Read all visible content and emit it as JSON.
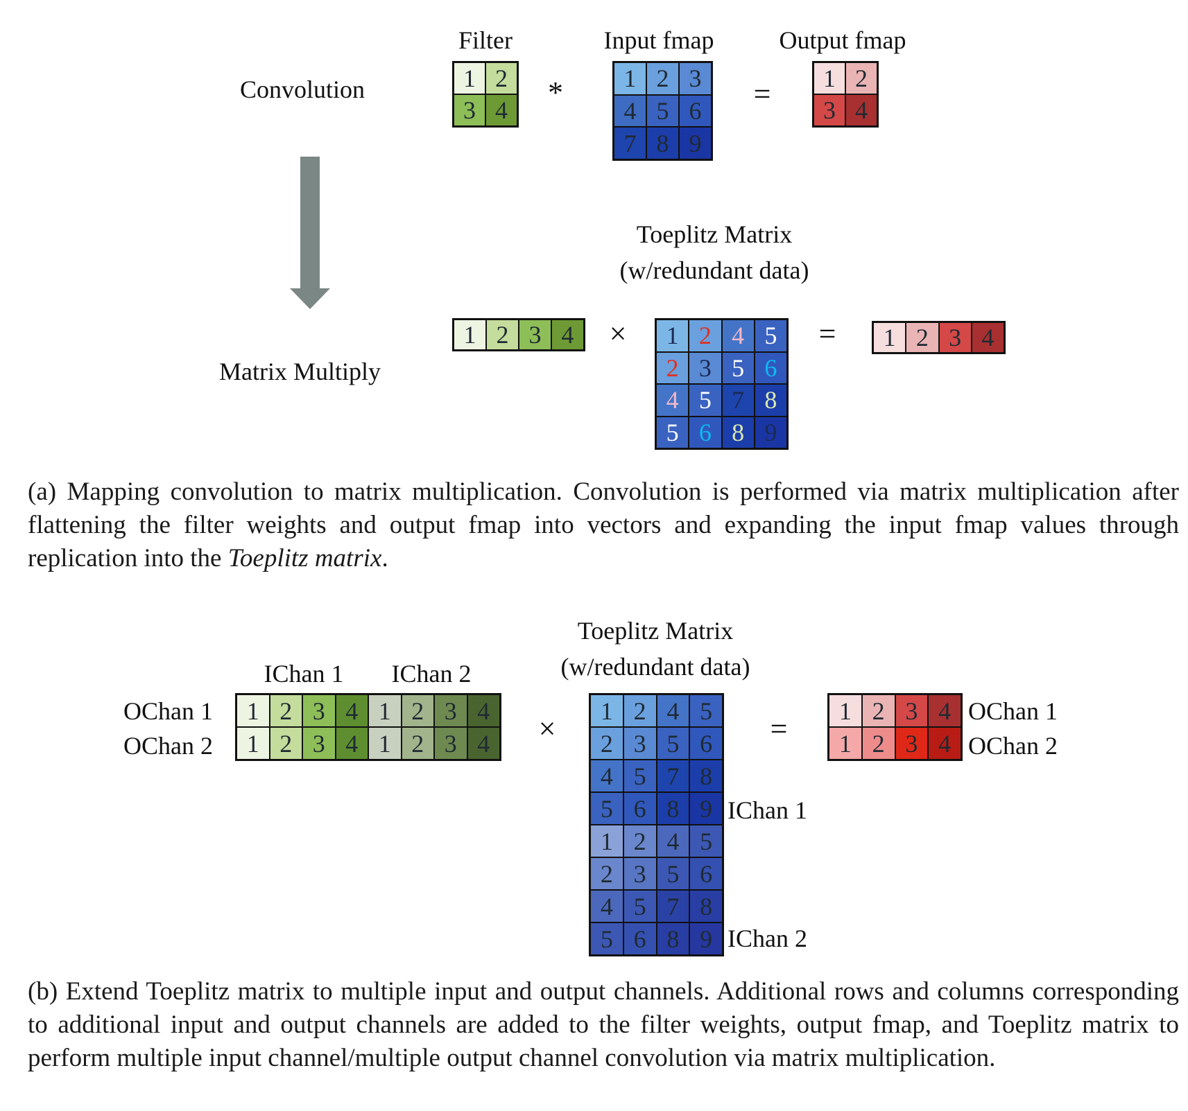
{
  "part_a": {
    "convolution_label": "Convolution",
    "matrix_multiply_label": "Matrix Multiply",
    "filter_label": "Filter",
    "input_label": "Input fmap",
    "output_label": "Output fmap",
    "conv_op": "*",
    "mul_op": "×",
    "eq_op": "=",
    "toeplitz_title": "Toeplitz Matrix",
    "toeplitz_subtitle": "(w/redundant data)",
    "filter_grid": {
      "cells": [
        {
          "v": "1",
          "bg": "#eef4e2"
        },
        {
          "v": "2",
          "bg": "#c4dc9c"
        },
        {
          "v": "3",
          "bg": "#8ebe58"
        },
        {
          "v": "4",
          "bg": "#6e9a36"
        }
      ]
    },
    "input_grid": {
      "cells": [
        {
          "v": "1",
          "bg": "#7cb6e6"
        },
        {
          "v": "2",
          "bg": "#6aa0de"
        },
        {
          "v": "3",
          "bg": "#5a8ad4"
        },
        {
          "v": "4",
          "bg": "#3e6cc2"
        },
        {
          "v": "5",
          "bg": "#3a62c0"
        },
        {
          "v": "6",
          "bg": "#3058bc"
        },
        {
          "v": "7",
          "bg": "#1e44ae"
        },
        {
          "v": "8",
          "bg": "#1c3eaa"
        },
        {
          "v": "9",
          "bg": "#1a36a4"
        }
      ]
    },
    "output_grid": {
      "cells": [
        {
          "v": "1",
          "bg": "#f6dede"
        },
        {
          "v": "2",
          "bg": "#eab4b4"
        },
        {
          "v": "3",
          "bg": "#d44848"
        },
        {
          "v": "4",
          "bg": "#a83030"
        }
      ]
    },
    "filter_vector": {
      "cells": [
        {
          "v": "1",
          "bg": "#eef4e2"
        },
        {
          "v": "2",
          "bg": "#c4dc9c"
        },
        {
          "v": "3",
          "bg": "#8ebe58"
        },
        {
          "v": "4",
          "bg": "#6e9a36"
        }
      ]
    },
    "toeplitz_grid": {
      "cells": [
        {
          "v": "1",
          "bg": "#7cb6e6",
          "fg": "#1a2a55"
        },
        {
          "v": "2",
          "bg": "#6aa0de",
          "fg": "#e03020"
        },
        {
          "v": "4",
          "bg": "#4474c8",
          "fg": "#f0b8c8"
        },
        {
          "v": "5",
          "bg": "#3a62c0",
          "fg": "#ffffff"
        },
        {
          "v": "2",
          "bg": "#6aa0de",
          "fg": "#e03020"
        },
        {
          "v": "3",
          "bg": "#5a8ad4",
          "fg": "#1a2a55"
        },
        {
          "v": "5",
          "bg": "#3a62c0",
          "fg": "#ffffff"
        },
        {
          "v": "6",
          "bg": "#3058bc",
          "fg": "#10b8f0"
        },
        {
          "v": "4",
          "bg": "#4474c8",
          "fg": "#f0b8c8"
        },
        {
          "v": "5",
          "bg": "#3a62c0",
          "fg": "#ffffff"
        },
        {
          "v": "7",
          "bg": "#1e44ae",
          "fg": "#1a2a55"
        },
        {
          "v": "8",
          "bg": "#1c3eaa",
          "fg": "#d8e8b0"
        },
        {
          "v": "5",
          "bg": "#3a62c0",
          "fg": "#ffffff"
        },
        {
          "v": "6",
          "bg": "#3058bc",
          "fg": "#10b8f0"
        },
        {
          "v": "8",
          "bg": "#1c3eaa",
          "fg": "#d8e8b0"
        },
        {
          "v": "9",
          "bg": "#1a36a4",
          "fg": "#1a2a55"
        }
      ]
    },
    "output_vector": {
      "cells": [
        {
          "v": "1",
          "bg": "#f6dede"
        },
        {
          "v": "2",
          "bg": "#eab4b4"
        },
        {
          "v": "3",
          "bg": "#d44848"
        },
        {
          "v": "4",
          "bg": "#a83030"
        }
      ]
    },
    "caption_plain_1": "(a) Mapping convolution to matrix multiplication. Convolution is performed via matrix multiplication after flattening the filter weights and output fmap into vectors and expanding the input fmap values through replication into the ",
    "caption_italic": "Toeplitz matrix",
    "caption_plain_2": "."
  },
  "part_b": {
    "toeplitz_title": "Toeplitz Matrix",
    "toeplitz_subtitle": "(w/redundant data)",
    "ichan1_label": "IChan 1",
    "ichan2_label": "IChan 2",
    "ochan1_label": "OChan 1",
    "ochan2_label": "OChan 2",
    "toeplitz_ichan1_label": "IChan 1",
    "toeplitz_ichan2_label": "IChan 2",
    "out_ochan1_label": "OChan 1",
    "out_ochan2_label": "OChan 2",
    "mul_op": "×",
    "eq_op": "=",
    "filter_grid": {
      "cells": [
        {
          "v": "1",
          "bg": "#eef4e2"
        },
        {
          "v": "2",
          "bg": "#c4dc9c"
        },
        {
          "v": "3",
          "bg": "#8ebe58"
        },
        {
          "v": "4",
          "bg": "#5e8e30"
        },
        {
          "v": "1",
          "bg": "#c8d0c0"
        },
        {
          "v": "2",
          "bg": "#a2b48c"
        },
        {
          "v": "3",
          "bg": "#6e8a50"
        },
        {
          "v": "4",
          "bg": "#4a6430"
        },
        {
          "v": "1",
          "bg": "#eef4e2"
        },
        {
          "v": "2",
          "bg": "#c4dc9c"
        },
        {
          "v": "3",
          "bg": "#8ebe58"
        },
        {
          "v": "4",
          "bg": "#5e8e30"
        },
        {
          "v": "1",
          "bg": "#c8d0c0"
        },
        {
          "v": "2",
          "bg": "#a2b48c"
        },
        {
          "v": "3",
          "bg": "#6e8a50"
        },
        {
          "v": "4",
          "bg": "#4a6430"
        }
      ]
    },
    "toeplitz_grid": {
      "cells": [
        {
          "v": "1",
          "bg": "#7cb6e6"
        },
        {
          "v": "2",
          "bg": "#6aa0de"
        },
        {
          "v": "4",
          "bg": "#4474c8"
        },
        {
          "v": "5",
          "bg": "#3a62c0"
        },
        {
          "v": "2",
          "bg": "#6aa0de"
        },
        {
          "v": "3",
          "bg": "#5a8ad4"
        },
        {
          "v": "5",
          "bg": "#3a62c0"
        },
        {
          "v": "6",
          "bg": "#3058bc"
        },
        {
          "v": "4",
          "bg": "#4474c8"
        },
        {
          "v": "5",
          "bg": "#3a62c0"
        },
        {
          "v": "7",
          "bg": "#1e44ae"
        },
        {
          "v": "8",
          "bg": "#1c3eaa"
        },
        {
          "v": "5",
          "bg": "#3a62c0"
        },
        {
          "v": "6",
          "bg": "#3058bc"
        },
        {
          "v": "8",
          "bg": "#1c3eaa"
        },
        {
          "v": "9",
          "bg": "#1a36a4"
        },
        {
          "v": "1",
          "bg": "#8aa2d8"
        },
        {
          "v": "2",
          "bg": "#6a86cc"
        },
        {
          "v": "4",
          "bg": "#4c68bc"
        },
        {
          "v": "5",
          "bg": "#3c58b4"
        },
        {
          "v": "2",
          "bg": "#6a86cc"
        },
        {
          "v": "3",
          "bg": "#5876c4"
        },
        {
          "v": "5",
          "bg": "#3c58b4"
        },
        {
          "v": "6",
          "bg": "#3450b0"
        },
        {
          "v": "4",
          "bg": "#4c68bc"
        },
        {
          "v": "5",
          "bg": "#3c58b4"
        },
        {
          "v": "7",
          "bg": "#2a42a6"
        },
        {
          "v": "8",
          "bg": "#283ea4"
        },
        {
          "v": "5",
          "bg": "#3c58b4"
        },
        {
          "v": "6",
          "bg": "#3450b0"
        },
        {
          "v": "8",
          "bg": "#283ea4"
        },
        {
          "v": "9",
          "bg": "#2638a0"
        }
      ]
    },
    "output_grid": {
      "cells": [
        {
          "v": "1",
          "bg": "#f6dede"
        },
        {
          "v": "2",
          "bg": "#eab4b4"
        },
        {
          "v": "3",
          "bg": "#d44848"
        },
        {
          "v": "4",
          "bg": "#a83030"
        },
        {
          "v": "1",
          "bg": "#f4a8a8"
        },
        {
          "v": "2",
          "bg": "#ee8c8c"
        },
        {
          "v": "3",
          "bg": "#e02818"
        },
        {
          "v": "4",
          "bg": "#b81c14"
        }
      ]
    },
    "caption": "(b) Extend Toeplitz matrix to multiple input and output channels. Additional rows and columns corre­sponding to additional input and output channels are added to the filter weights, output fmap, and Toeplitz matrix to perform multiple input channel/multiple output channel convolution via matrix multiplication."
  }
}
